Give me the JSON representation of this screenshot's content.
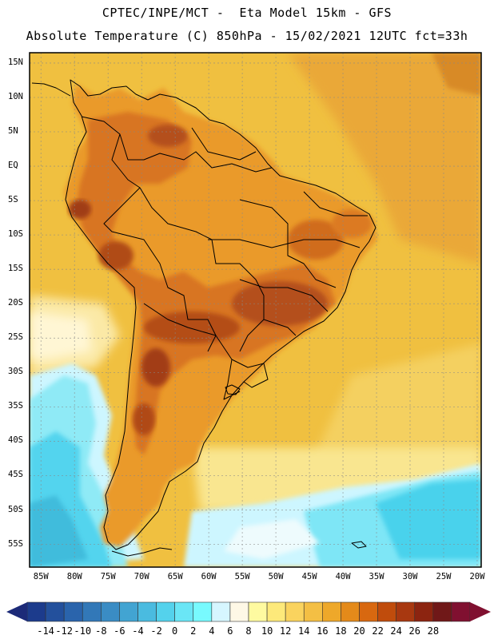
{
  "title": {
    "line1": "CPTEC/INPE/MCT -  Eta Model 15km - GFS",
    "line2": "Absolute Temperature (C) 850hPa - 15/02/2021 12UTC fct=33h"
  },
  "map": {
    "lat_labels": [
      "15N",
      "10N",
      "5N",
      "EQ",
      "5S",
      "10S",
      "15S",
      "20S",
      "25S",
      "30S",
      "35S",
      "40S",
      "45S",
      "50S",
      "55S"
    ],
    "lon_labels": [
      "85W",
      "80W",
      "75W",
      "70W",
      "65W",
      "60W",
      "55W",
      "50W",
      "45W",
      "40W",
      "35W",
      "30W",
      "25W",
      "20W"
    ],
    "colors": {
      "ocean_warm": "#f0c040",
      "land_mid": "#ea9a2c",
      "land_hot": "#d86818",
      "land_hotter": "#bc4c12",
      "land_hottest": "#9c3010",
      "ocean_mild": "#f6dc72",
      "ocean_cool": "#fff6cc",
      "cold_1": "#cdf6ff",
      "cold_2": "#7ee6f6",
      "cold_3": "#48d2ec"
    }
  },
  "colorbar": {
    "labels": [
      "-14",
      "-12",
      "-10",
      "-8",
      "-6",
      "-4",
      "-2",
      "0",
      "2",
      "4",
      "6",
      "8",
      "10",
      "12",
      "14",
      "16",
      "18",
      "20",
      "22",
      "24",
      "26",
      "28"
    ],
    "colors": [
      "#1c3b8c",
      "#23509c",
      "#2a64ac",
      "#3278b8",
      "#3a8cc4",
      "#42a4d2",
      "#4abbe0",
      "#54d2ec",
      "#6ae6f6",
      "#78fafe",
      "#d6f6ff",
      "#fef8e6",
      "#fefaa0",
      "#fde97a",
      "#fad35e",
      "#f4bf44",
      "#eea82a",
      "#e48a1a",
      "#d86810",
      "#c04c0c",
      "#a83810",
      "#8c2410",
      "#701818",
      "#801030"
    ]
  }
}
